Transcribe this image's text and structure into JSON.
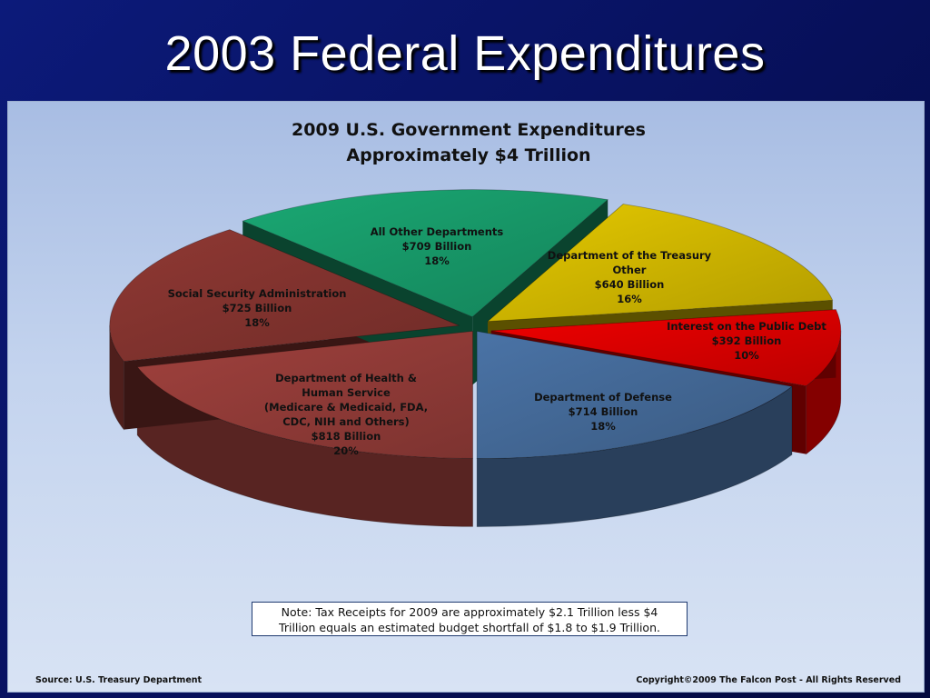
{
  "slide": {
    "title": "2003 Federal Expenditures"
  },
  "chart_data": {
    "type": "pie",
    "title_lines": [
      "2009 U.S. Government Expenditures",
      "Approximately $4 Trillion"
    ],
    "slices": [
      {
        "id": "hhs",
        "label_lines": [
          "Department of Health &",
          "Human Service",
          "(Medicare & Medicaid, FDA,",
          "CDC, NIH and Others)",
          "$818 Billion",
          "20%"
        ],
        "value": 818,
        "percent": 20,
        "color": "#a0413d",
        "exploded": false
      },
      {
        "id": "ssa",
        "label_lines": [
          "Social Security Administration",
          "$725 Billion",
          "18%"
        ],
        "value": 725,
        "percent": 18,
        "color": "#8f3833",
        "exploded": true
      },
      {
        "id": "other",
        "label_lines": [
          "All Other Departments",
          "$709 Billion",
          "18%"
        ],
        "value": 709,
        "percent": 18,
        "color": "#1aa873",
        "exploded": true
      },
      {
        "id": "treasury",
        "label_lines": [
          "Department of the Treasury",
          "Other",
          "$640 Billion",
          "16%"
        ],
        "value": 640,
        "percent": 16,
        "color": "#e4c800",
        "exploded": true
      },
      {
        "id": "interest",
        "label_lines": [
          "Interest on the Public Debt",
          "$392 Billion",
          "10%"
        ],
        "value": 392,
        "percent": 10,
        "color": "#f00000",
        "exploded": true
      },
      {
        "id": "defense",
        "label_lines": [
          "Department of Defense",
          "$714 Billion",
          "18%"
        ],
        "value": 714,
        "percent": 18,
        "color": "#4a73a6",
        "exploded": false
      }
    ]
  },
  "note": {
    "line1": "Note:  Tax Receipts for 2009 are approximately $2.1 Trillion less $4",
    "line2": "Trillion equals an estimated budget shortfall of $1.8 to $1.9 Trillion."
  },
  "footer": {
    "source": "Source: U.S. Treasury Department",
    "copyright": "Copyright©2009 The Falcon Post - All Rights Reserved"
  }
}
